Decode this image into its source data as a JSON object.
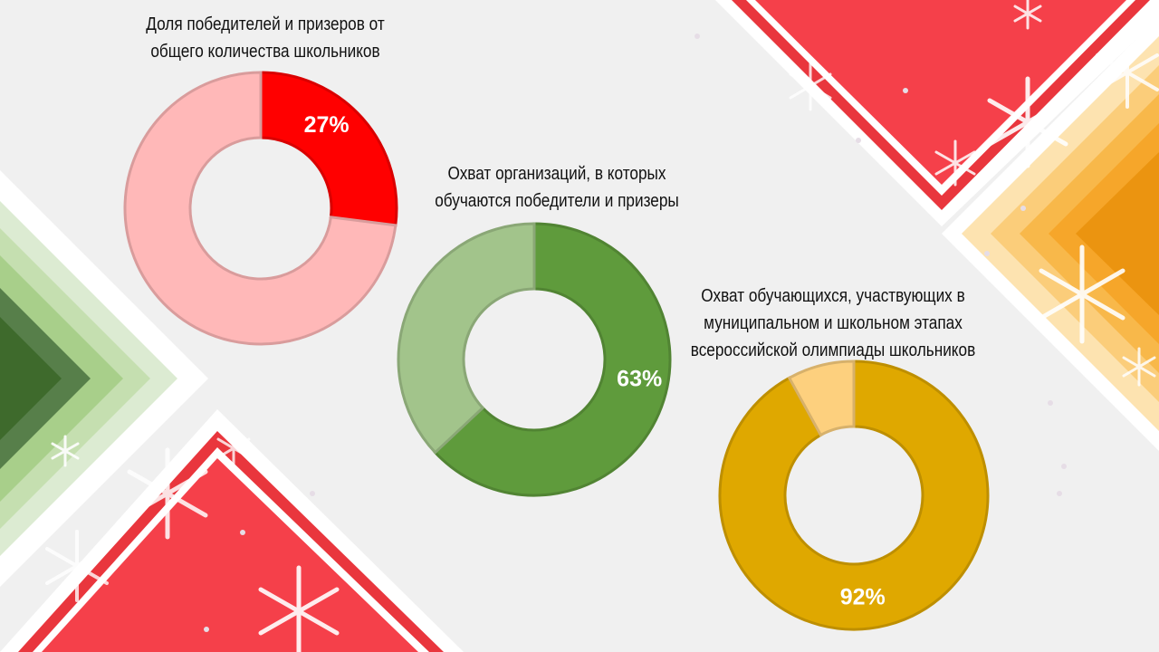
{
  "colors": {
    "background": "#f0f0f0",
    "red_accent": "#f5404a",
    "orange_accent": "#f6a62a",
    "green_dark": "#3e6a2c"
  },
  "chart_data": [
    {
      "type": "pie",
      "title": "Доля победителей и призеров от общего количества школьников",
      "title_lines": [
        "Доля победителей и призеров от",
        "общего количества школьников"
      ],
      "values": [
        27,
        73
      ],
      "value_label": "27%",
      "colors": [
        "#ff0000",
        "#ffb8b8"
      ],
      "donut": true
    },
    {
      "type": "pie",
      "title": "Охват организаций, в которых обучаются победители и призеры",
      "title_lines": [
        "Охват организаций, в которых",
        "обучаются победители и призеры"
      ],
      "values": [
        63,
        37
      ],
      "value_label": "63%",
      "colors": [
        "#5f9b3c",
        "#a2c48b"
      ],
      "donut": true
    },
    {
      "type": "pie",
      "title": "Охват обучающихся, участвующих в муниципальном и школьном этапах всероссийской олимпиады школьников",
      "title_lines": [
        "Охват обучающихся, участвующих в",
        "муниципальном и школьном этапах",
        "всероссийской олимпиады школьников"
      ],
      "values": [
        92,
        8
      ],
      "value_label": "92%",
      "colors": [
        "#dfa800",
        "#fdd07e"
      ],
      "donut": true
    }
  ]
}
